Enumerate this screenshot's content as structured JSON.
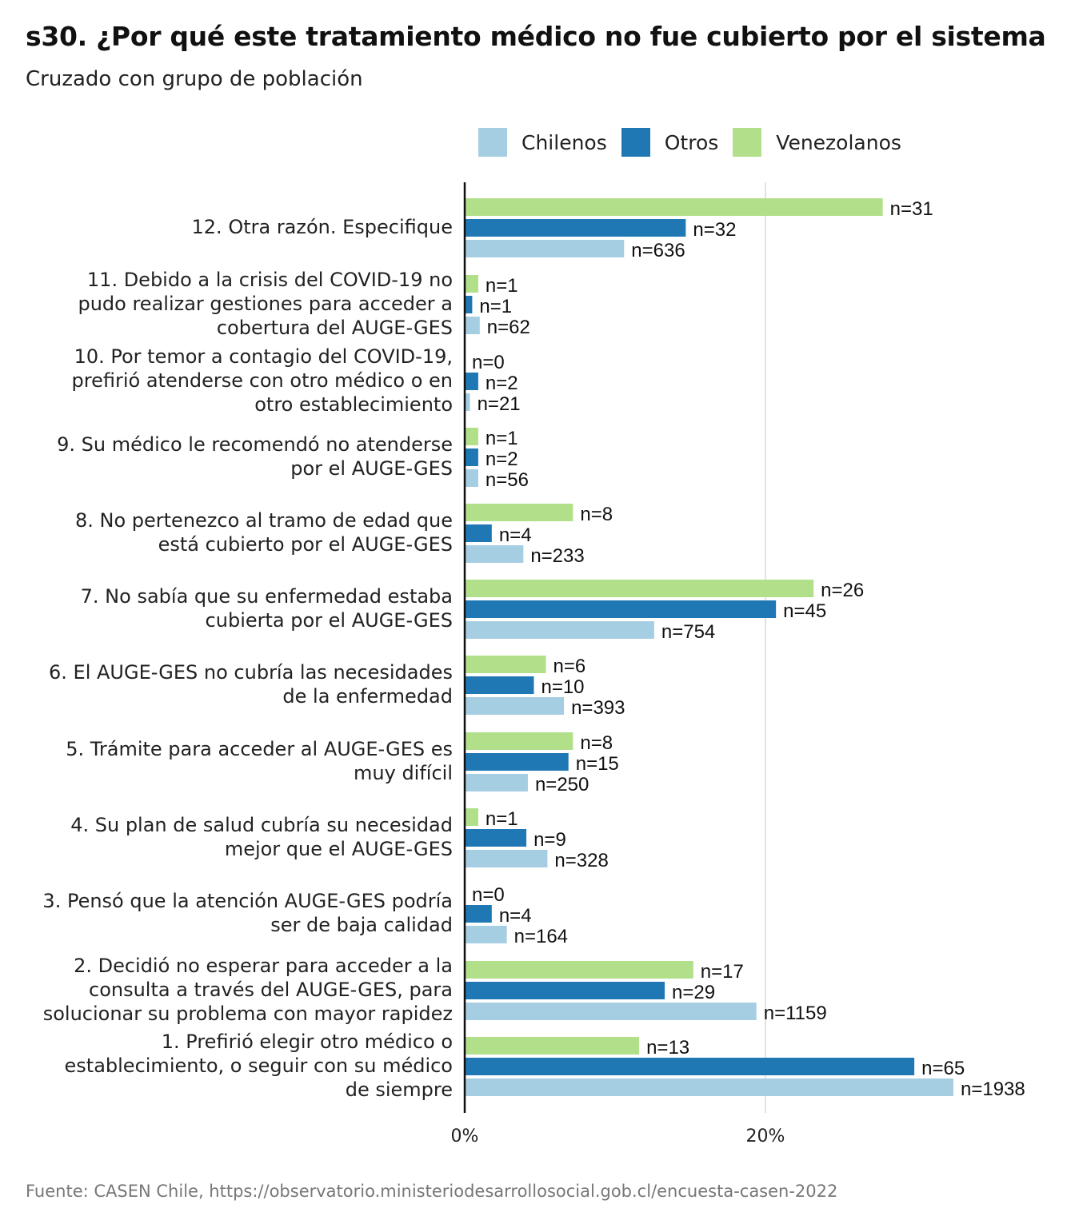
{
  "title": "s30. ¿Por qué este tratamiento médico no fue cubierto por el sistema",
  "subtitle": "Cruzado con grupo de población",
  "source": "Fuente: CASEN Chile, https://observatorio.ministeriodesarrollosocial.gob.cl/encuesta-casen-2022",
  "legend": [
    {
      "label": "Chilenos",
      "color": "#a6cee3"
    },
    {
      "label": "Otros",
      "color": "#1f78b4"
    },
    {
      "label": "Venezolanos",
      "color": "#b2df8a"
    }
  ],
  "chart_data": {
    "type": "bar",
    "orientation": "horizontal",
    "title": "s30. ¿Por qué este tratamiento médico no fue cubierto por el sistema",
    "subtitle": "Cruzado con grupo de población",
    "xlim": [
      0,
      0.335
    ],
    "xticks": [
      {
        "value": 0,
        "label": "0%"
      },
      {
        "value": 0.2,
        "label": "20%"
      }
    ],
    "grid": true,
    "legend_position": "top",
    "categories": [
      [
        "12. Otra razón. Especifique"
      ],
      [
        "11. Debido a la crisis del COVID-19 no",
        "pudo realizar gestiones para acceder a",
        "cobertura del AUGE-GES"
      ],
      [
        "10. Por temor a contagio del COVID-19,",
        "prefirió atenderse con otro médico o en",
        "otro establecimiento"
      ],
      [
        "9. Su médico le recomendó no atenderse",
        "por el AUGE-GES"
      ],
      [
        "8. No pertenezco al tramo de edad que",
        "está cubierto por el AUGE-GES"
      ],
      [
        "7. No sabía que su enfermedad estaba",
        "cubierta por el AUGE-GES"
      ],
      [
        "6. El AUGE-GES no cubría las necesidades",
        "de la enfermedad"
      ],
      [
        "5. Trámite para acceder al AUGE-GES es",
        "muy difícil"
      ],
      [
        "4. Su plan de salud cubría su necesidad",
        "mejor que el AUGE-GES"
      ],
      [
        "3. Pensó que la atención AUGE-GES podría",
        "ser de baja calidad"
      ],
      [
        "2. Decidió no esperar para acceder a la",
        "consulta a través del AUGE-GES, para",
        "solucionar su problema con mayor rapidez"
      ],
      [
        "1. Prefirió elegir otro médico o",
        "establecimiento, o seguir con su médico",
        "de siempre"
      ]
    ],
    "series": [
      {
        "name": "Venezolanos",
        "color": "#b2df8a",
        "values": [
          0.278,
          0.009,
          0.0,
          0.009,
          0.072,
          0.232,
          0.054,
          0.072,
          0.009,
          0.0,
          0.152,
          0.116
        ],
        "labels": [
          "n=31",
          "n=1",
          "n=0",
          "n=1",
          "n=8",
          "n=26",
          "n=6",
          "n=8",
          "n=1",
          "n=0",
          "n=17",
          "n=13"
        ]
      },
      {
        "name": "Otros",
        "color": "#1f78b4",
        "values": [
          0.147,
          0.005,
          0.009,
          0.009,
          0.018,
          0.207,
          0.046,
          0.069,
          0.041,
          0.018,
          0.133,
          0.299
        ],
        "labels": [
          "n=32",
          "n=1",
          "n=2",
          "n=2",
          "n=4",
          "n=45",
          "n=10",
          "n=15",
          "n=9",
          "n=4",
          "n=29",
          "n=65"
        ]
      },
      {
        "name": "Chilenos",
        "color": "#a6cee3",
        "values": [
          0.106,
          0.01,
          0.0035,
          0.009,
          0.039,
          0.126,
          0.066,
          0.042,
          0.055,
          0.028,
          0.194,
          0.325
        ],
        "labels": [
          "n=636",
          "n=62",
          "n=21",
          "n=56",
          "n=233",
          "n=754",
          "n=393",
          "n=250",
          "n=328",
          "n=164",
          "n=1159",
          "n=1938"
        ]
      }
    ]
  }
}
